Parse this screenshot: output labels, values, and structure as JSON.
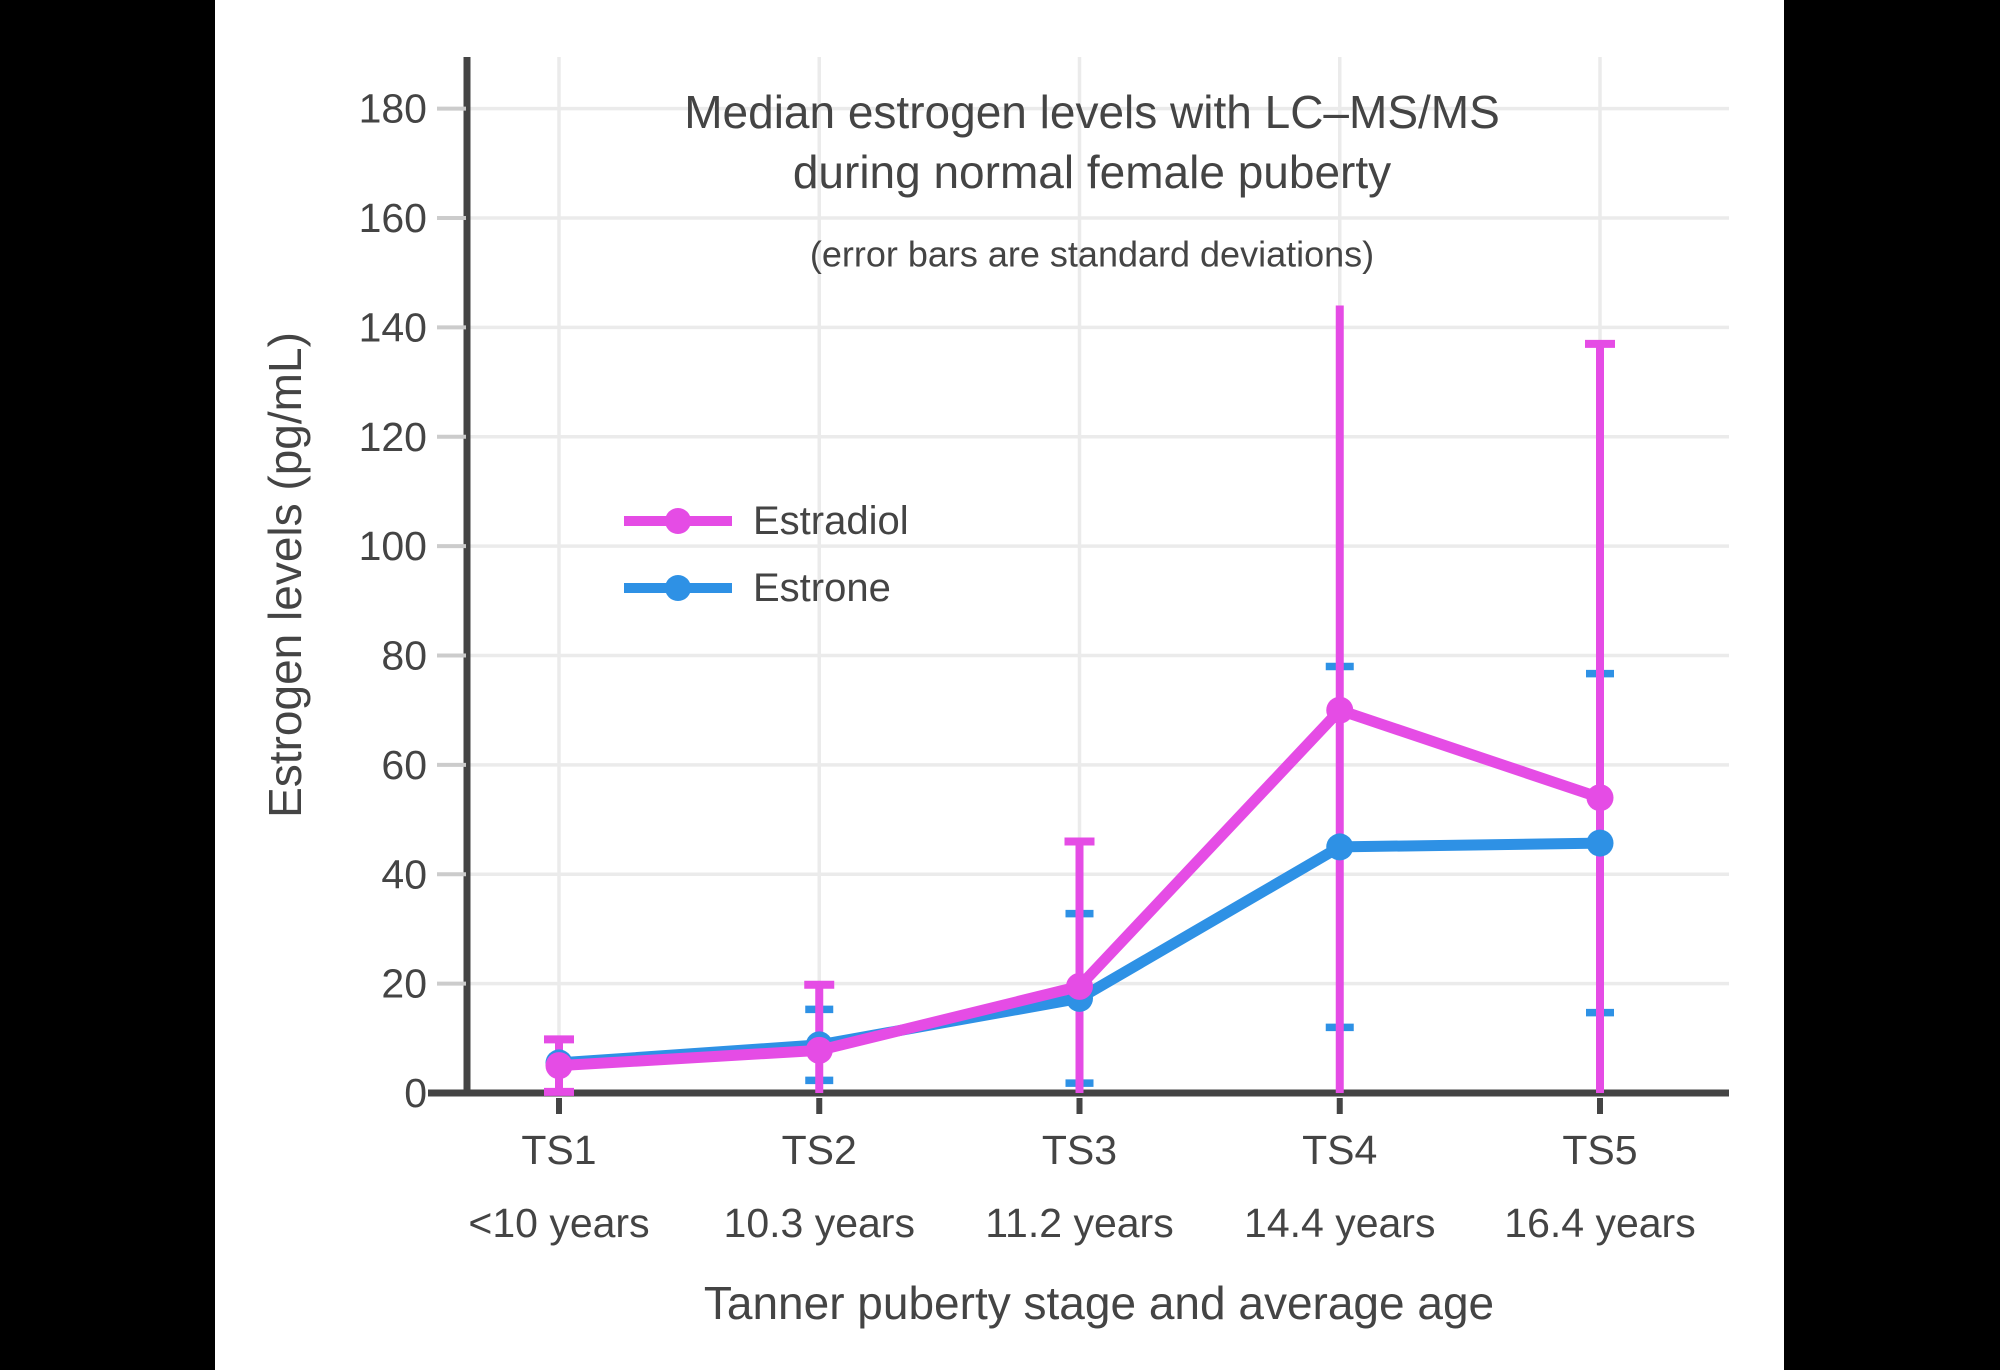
{
  "frame": {
    "letterbox_color": "#000000",
    "background_color": "#ffffff"
  },
  "colors": {
    "text": "#444444",
    "grid": "#ebebeb",
    "axis": "#444444",
    "y_tick": "#cccccc",
    "estradiol": "#E54CE5",
    "estrone": "#2E91E5"
  },
  "chart_data": {
    "type": "line",
    "title_line1": "Median estrogen levels with LC–MS/MS",
    "title_line2": "during normal female puberty",
    "subtitle": "(error bars are standard deviations)",
    "xlabel": "Tanner puberty stage and average age",
    "ylabel": "Estrogen levels (pg/mL)",
    "categories": [
      "TS1",
      "TS2",
      "TS3",
      "TS4",
      "TS5"
    ],
    "age_labels": [
      "<10 years",
      "10.3 years",
      "11.2 years",
      "14.4 years",
      "16.4 years"
    ],
    "ylim": [
      0,
      190
    ],
    "yticks": [
      0,
      20,
      40,
      60,
      80,
      100,
      120,
      140,
      160,
      180
    ],
    "grid": true,
    "legend_position": "inside-upper-left",
    "error_bars": "standard deviations, clipped at 0",
    "series": [
      {
        "name": "Estradiol",
        "color": "#E54CE5",
        "values": [
          5,
          7.8,
          19.5,
          70,
          54
        ],
        "sd": [
          4.8,
          12,
          26.5,
          74,
          83
        ],
        "caps_top": [
          true,
          true,
          true,
          false,
          true
        ],
        "caps_bottom": [
          true,
          false,
          false,
          false,
          false
        ]
      },
      {
        "name": "Estrone",
        "color": "#2E91E5",
        "values": [
          5.5,
          8.8,
          17.3,
          45,
          45.7
        ],
        "sd": [
          null,
          6.5,
          15.5,
          33,
          31
        ],
        "caps_top": [
          false,
          true,
          true,
          true,
          true
        ],
        "caps_bottom": [
          false,
          true,
          true,
          true,
          true
        ]
      }
    ]
  }
}
